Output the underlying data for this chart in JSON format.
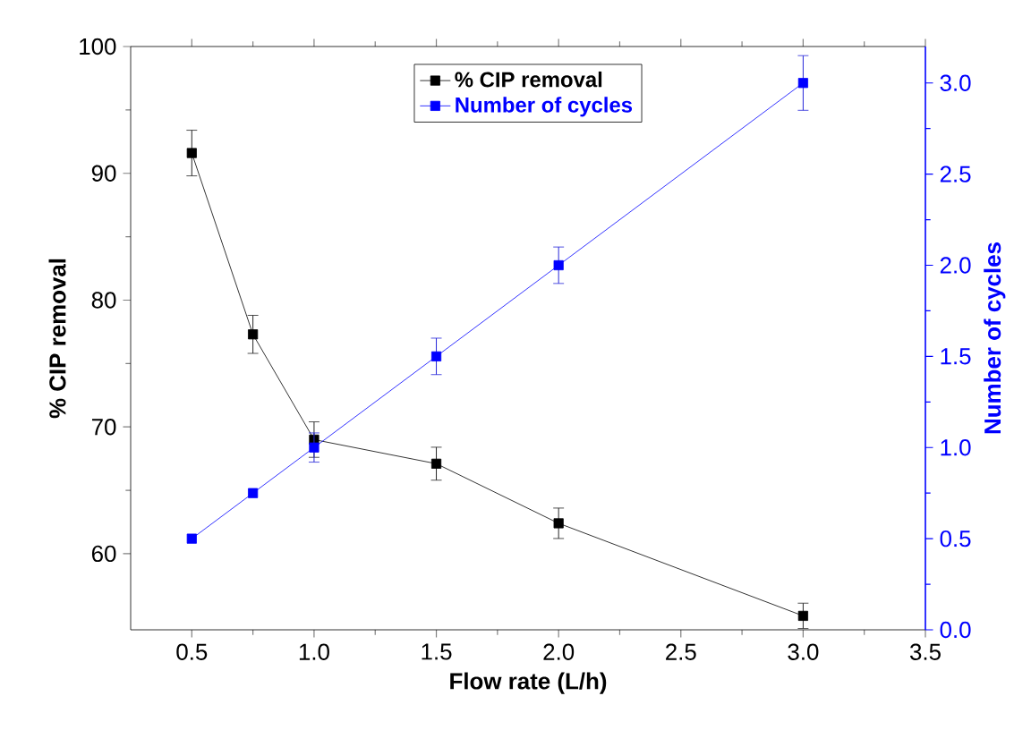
{
  "chart_data": {
    "type": "line",
    "xlabel": "Flow rate (L/h)",
    "ylabel": "% CIP removal",
    "y2label": "Number of cycles",
    "x": [
      0.5,
      0.75,
      1.0,
      1.5,
      2.0,
      3.0
    ],
    "series": [
      {
        "name": "% CIP removal",
        "color": "#000000",
        "values": [
          91.6,
          77.3,
          69.0,
          67.1,
          62.4,
          55.1
        ],
        "errors": [
          1.8,
          1.5,
          1.4,
          1.3,
          1.2,
          1.0
        ]
      },
      {
        "name": "Number of cycles",
        "color": "#0000ff",
        "axis": "y2",
        "values": [
          0.5,
          0.75,
          1.0,
          1.5,
          2.0,
          3.0
        ],
        "errors": [
          null,
          null,
          0.08,
          0.1,
          0.1,
          0.15
        ]
      }
    ],
    "xlim": [
      0.25,
      3.5
    ],
    "xticks": [
      {
        "value": 0.5,
        "label": "0.5"
      },
      {
        "value": 1.0,
        "label": "1.0"
      },
      {
        "value": 1.5,
        "label": "1.5"
      },
      {
        "value": 2.0,
        "label": "2.0"
      },
      {
        "value": 2.5,
        "label": "2.5"
      },
      {
        "value": 3.0,
        "label": "3.0"
      },
      {
        "value": 3.5,
        "label": "3.5"
      }
    ],
    "ylim": [
      54,
      100
    ],
    "yticks": [
      60,
      70,
      80,
      90,
      100
    ],
    "y2lim": [
      0,
      3.2
    ],
    "y2ticks": [
      {
        "value": 0,
        "label": "0.0"
      },
      {
        "value": 0.5,
        "label": "0.5"
      },
      {
        "value": 1.0,
        "label": "1.0"
      },
      {
        "value": 1.5,
        "label": "1.5"
      },
      {
        "value": 2.0,
        "label": "2.0"
      },
      {
        "value": 2.5,
        "label": "2.5"
      },
      {
        "value": 3.0,
        "label": "3.0"
      }
    ],
    "marker": "square",
    "line_style": "solid",
    "legend": "top",
    "grid": false
  }
}
